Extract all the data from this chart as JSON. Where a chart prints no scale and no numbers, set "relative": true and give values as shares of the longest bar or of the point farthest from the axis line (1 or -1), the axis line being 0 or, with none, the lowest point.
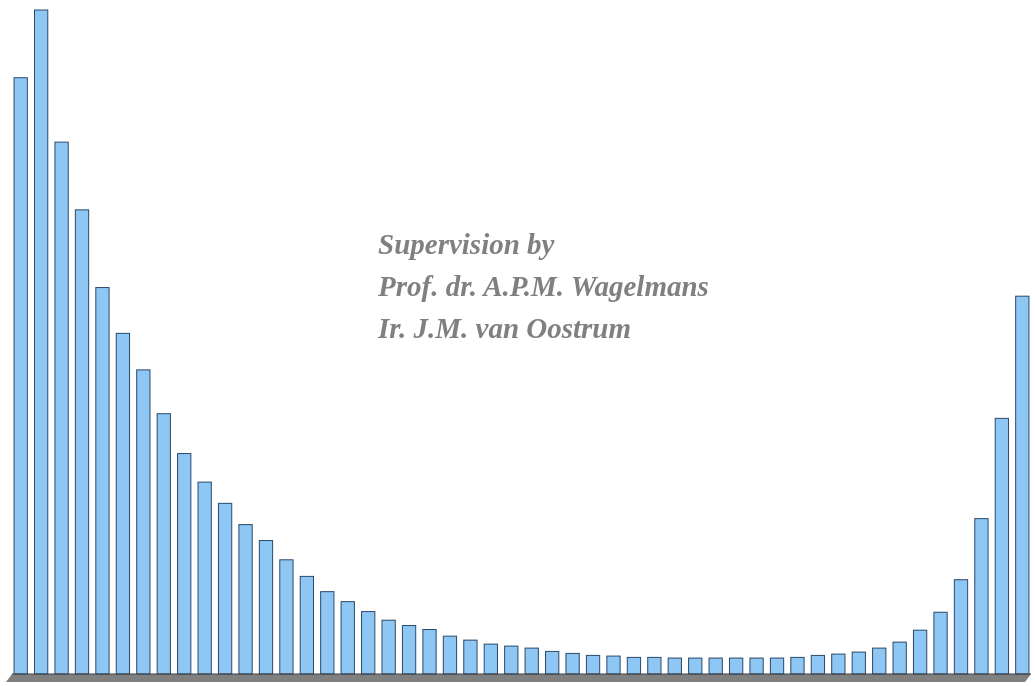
{
  "chart_data": {
    "type": "bar",
    "relative": true,
    "color": "#8ec6f4",
    "categories": [
      null,
      null,
      null,
      null,
      null,
      null,
      null,
      null,
      null,
      null,
      null,
      null,
      null,
      null,
      null,
      null,
      null,
      null,
      null,
      null,
      null,
      null,
      null,
      null,
      null,
      null,
      null,
      null,
      null,
      null,
      null,
      null,
      null,
      null,
      null,
      null,
      null,
      null,
      null,
      null,
      null,
      null,
      null,
      null,
      null,
      null,
      null,
      null,
      null,
      null
    ],
    "values": [
      0.898,
      1,
      0.801,
      0.699,
      0.582,
      0.513,
      0.458,
      0.392,
      0.332,
      0.289,
      0.257,
      0.225,
      0.201,
      0.172,
      0.147,
      0.124,
      0.109,
      0.094,
      0.081,
      0.073,
      0.067,
      0.057,
      0.051,
      0.045,
      0.042,
      0.039,
      0.034,
      0.031,
      0.028,
      0.027,
      0.025,
      0.025,
      0.024,
      0.024,
      0.024,
      0.024,
      0.024,
      0.024,
      0.025,
      0.028,
      0.03,
      0.033,
      0.039,
      0.048,
      0.066,
      0.093,
      0.142,
      0.234,
      0.385,
      0.569
    ],
    "annotations": [
      "Supervision by",
      "Prof. dr. A.P.M. Wagelmans",
      "Ir. J.M. van Oostrum"
    ]
  }
}
